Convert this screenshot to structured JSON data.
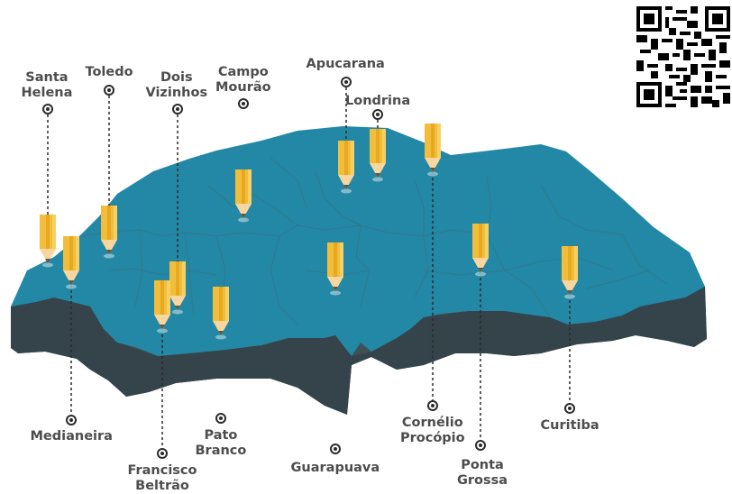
{
  "title": "",
  "colors": {
    "map_top": "#2388a5",
    "map_side": "#3f5157",
    "pencil_body": "#f2bd3b",
    "pencil_tip": "#f8d6a0",
    "label": "#4d4d4d",
    "line": "#2a2a2a"
  },
  "labels": [
    {
      "id": "santa-helena",
      "text": "Santa\nHelena"
    },
    {
      "id": "toledo",
      "text": "Toledo"
    },
    {
      "id": "dois-vizinhos",
      "text": "Dois\nVizinhos"
    },
    {
      "id": "campo-mourao",
      "text": "Campo\nMourão"
    },
    {
      "id": "apucarana",
      "text": "Apucarana"
    },
    {
      "id": "londrina",
      "text": "Londrina"
    },
    {
      "id": "medianeira",
      "text": "Medianeira"
    },
    {
      "id": "francisco-beltrao",
      "text": "Francisco\nBeltrão"
    },
    {
      "id": "pato-branco",
      "text": "Pato\nBranco"
    },
    {
      "id": "guarapuava",
      "text": "Guarapuava"
    },
    {
      "id": "cornelio-procopio",
      "text": "Cornélio\nProcópio"
    },
    {
      "id": "ponta-grossa",
      "text": "Ponta\nGrossa"
    },
    {
      "id": "curitiba",
      "text": "Curitiba"
    }
  ],
  "qr_icon": "qr-code-icon"
}
